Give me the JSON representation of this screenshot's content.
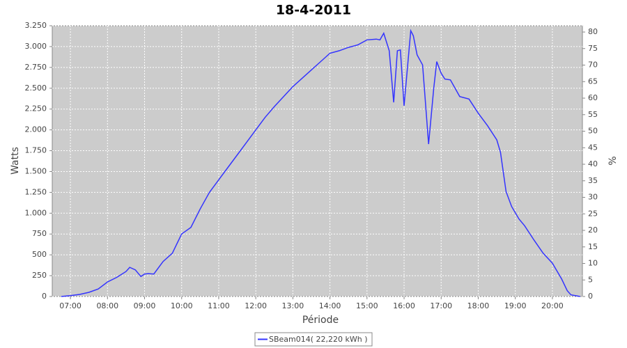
{
  "chart_data": {
    "type": "line",
    "title": "18-4-2011",
    "x_label": "Période",
    "y_label": "Watts",
    "y2_label": "%",
    "xlim": [
      6.51,
      20.81
    ],
    "ylim": [
      0,
      3250
    ],
    "y2lim": [
      0,
      81.9
    ],
    "xticks": [
      {
        "value": 7,
        "label": "07:00"
      },
      {
        "value": 8,
        "label": "08:00"
      },
      {
        "value": 9,
        "label": "09:00"
      },
      {
        "value": 10,
        "label": "10:00"
      },
      {
        "value": 11,
        "label": "11:00"
      },
      {
        "value": 12,
        "label": "12:00"
      },
      {
        "value": 13,
        "label": "13:00"
      },
      {
        "value": 14,
        "label": "14:00"
      },
      {
        "value": 15,
        "label": "15:00"
      },
      {
        "value": 16,
        "label": "16:00"
      },
      {
        "value": 17,
        "label": "17:00"
      },
      {
        "value": 18,
        "label": "18:00"
      },
      {
        "value": 19,
        "label": "19:00"
      },
      {
        "value": 20,
        "label": "20:00"
      }
    ],
    "yticks": [
      0,
      250,
      500,
      750,
      {
        "value": 1000,
        "label": "1.000"
      },
      {
        "value": 1250,
        "label": "1.250"
      },
      {
        "value": 1500,
        "label": "1.500"
      },
      {
        "value": 1750,
        "label": "1.750"
      },
      {
        "value": 2000,
        "label": "2.000"
      },
      {
        "value": 2250,
        "label": "2.250"
      },
      {
        "value": 2500,
        "label": "2.500"
      },
      {
        "value": 2750,
        "label": "2.750"
      },
      {
        "value": 3000,
        "label": "3.000"
      },
      {
        "value": 3250,
        "label": "3.250"
      }
    ],
    "y2ticks": [
      0,
      5,
      10,
      15,
      20,
      25,
      30,
      35,
      40,
      45,
      50,
      55,
      60,
      65,
      70,
      75,
      80
    ],
    "grid": true,
    "plot_background": "#cccccc",
    "legend": "bottom",
    "x": [
      6.75,
      7.0,
      7.25,
      7.5,
      7.75,
      8.0,
      8.25,
      8.5,
      8.6,
      8.75,
      8.9,
      9.0,
      9.1,
      9.25,
      9.5,
      9.75,
      10.0,
      10.25,
      10.5,
      10.75,
      11.0,
      11.25,
      11.5,
      11.75,
      12.0,
      12.25,
      12.5,
      12.75,
      13.0,
      13.25,
      13.5,
      13.75,
      14.0,
      14.25,
      14.5,
      14.75,
      15.0,
      15.25,
      15.35,
      15.45,
      15.6,
      15.72,
      15.82,
      15.9,
      16.0,
      16.18,
      16.25,
      16.35,
      16.5,
      16.66,
      16.8,
      16.88,
      17.0,
      17.1,
      17.25,
      17.5,
      17.75,
      18.0,
      18.25,
      18.5,
      18.6,
      18.75,
      18.9,
      19.1,
      19.25,
      19.5,
      19.75,
      20.0,
      20.25,
      20.4,
      20.5,
      20.75
    ],
    "series": [
      {
        "name": "SBeam014( 22,220 kWh )",
        "color": "#3333ff",
        "values": [
          0,
          10,
          25,
          50,
          90,
          175,
          230,
          300,
          350,
          320,
          240,
          270,
          275,
          270,
          420,
          520,
          750,
          830,
          1050,
          1250,
          1400,
          1550,
          1700,
          1850,
          2000,
          2150,
          2280,
          2400,
          2520,
          2620,
          2720,
          2820,
          2920,
          2950,
          2990,
          3020,
          3080,
          3090,
          3080,
          3160,
          2950,
          2330,
          2950,
          2960,
          2290,
          3190,
          3130,
          2900,
          2780,
          1830,
          2500,
          2820,
          2680,
          2610,
          2600,
          2400,
          2370,
          2200,
          2050,
          1880,
          1730,
          1260,
          1080,
          930,
          850,
          680,
          520,
          400,
          210,
          70,
          20,
          0
        ]
      }
    ]
  }
}
